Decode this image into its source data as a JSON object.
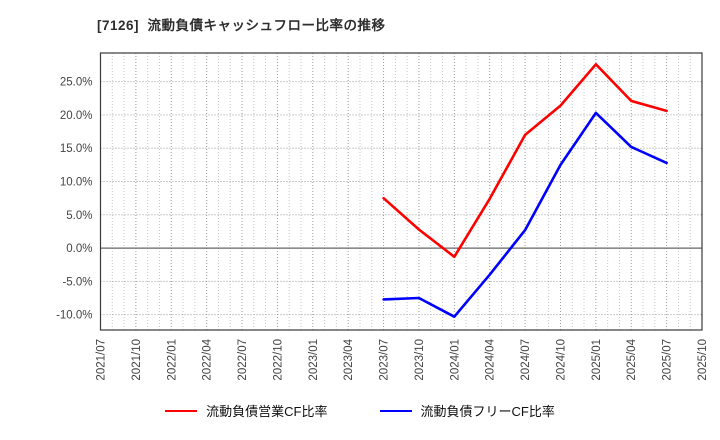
{
  "title": "[7126]  流動負債キャッシュフロー比率の推移",
  "legend": {
    "items": [
      {
        "label": "流動負債営業CF比率",
        "color": "#ff0000"
      },
      {
        "label": "流動負債フリーCF比率",
        "color": "#0000ff"
      }
    ]
  },
  "chart_data": {
    "type": "line",
    "title": "[7126]  流動負債キャッシュフロー比率の推移",
    "xlabel": "",
    "ylabel": "",
    "ylim": [
      -12.3,
      29.3
    ],
    "y_ticks": [
      -10,
      -5,
      0,
      5,
      10,
      15,
      20,
      25
    ],
    "y_tick_suffix": "%",
    "grid": true,
    "minor_x_grid": "monthly",
    "legend_position": "bottom",
    "x_tick_labels": [
      "2021/07",
      "2021/10",
      "2022/01",
      "2022/04",
      "2022/07",
      "2022/10",
      "2023/01",
      "2023/04",
      "2023/07",
      "2023/10",
      "2024/01",
      "2024/04",
      "2024/07",
      "2024/10",
      "2025/01",
      "2025/04",
      "2025/07",
      "2025/10"
    ],
    "series": [
      {
        "name": "流動負債営業CF比率",
        "color": "#ff0000",
        "x": [
          "2023/07",
          "2023/10",
          "2024/01",
          "2024/04",
          "2024/07",
          "2024/10",
          "2025/01",
          "2025/04",
          "2025/07"
        ],
        "values": [
          7.5,
          2.8,
          -1.3,
          7.4,
          17.0,
          21.4,
          27.6,
          22.1,
          20.6
        ]
      },
      {
        "name": "流動負債フリーCF比率",
        "color": "#0000ff",
        "x": [
          "2023/07",
          "2023/10",
          "2024/01",
          "2024/04",
          "2024/07",
          "2024/10",
          "2025/01",
          "2025/04",
          "2025/07"
        ],
        "values": [
          -7.7,
          -7.5,
          -10.3,
          -4.0,
          2.7,
          12.5,
          20.3,
          15.2,
          12.8
        ]
      }
    ]
  },
  "colors": {
    "frame": "#3a3a3a",
    "grid_major": "#9a9a9a",
    "grid_minor": "#c6c6c6",
    "zero_line": "#666666",
    "tick_text": "#444444"
  }
}
